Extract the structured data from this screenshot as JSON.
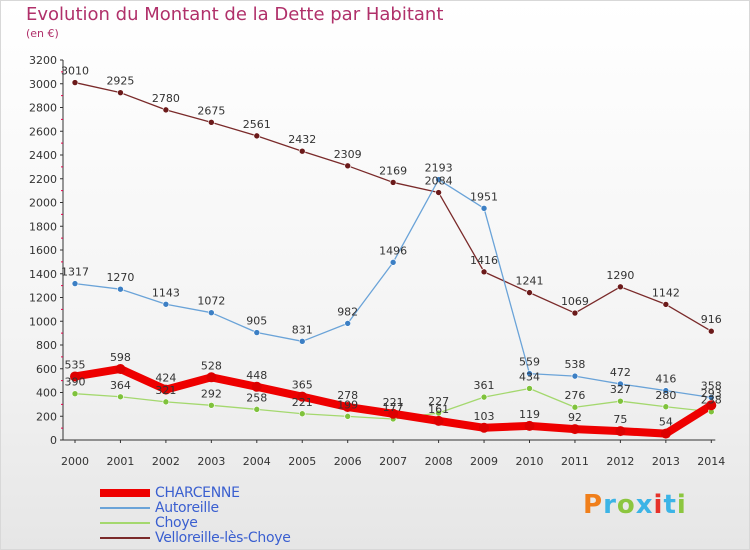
{
  "title": "Evolution du Montant de la Dette par Habitant",
  "subtitle": "(en €)",
  "logo": {
    "text": "Proxiti",
    "colors": [
      "#f07f1b",
      "#3cb4e6",
      "#8cc63f",
      "#3cb4e6",
      "#e6322a",
      "#3cb4e6",
      "#8cc63f"
    ]
  },
  "colors": {
    "title": "#b0306a",
    "axis": "#333333",
    "tick_label": "#333333",
    "legend_text": "#3a5fd0"
  },
  "chart_data": {
    "type": "line",
    "title": "Evolution du Montant de la Dette par Habitant",
    "subtitle": "(en €)",
    "x": [
      "2000",
      "2001",
      "2002",
      "2003",
      "2004",
      "2005",
      "2006",
      "2007",
      "2008",
      "2009",
      "2010",
      "2011",
      "2012",
      "2013",
      "2014"
    ],
    "ylim": [
      0,
      3200
    ],
    "yticks": [
      0,
      200,
      400,
      600,
      800,
      1000,
      1200,
      1400,
      1600,
      1800,
      2000,
      2200,
      2400,
      2600,
      2800,
      3000,
      3200
    ],
    "grid": false,
    "legend_position": "bottom-left",
    "series": [
      {
        "name": "CHARCENNE",
        "color": "#ee0000",
        "marker": "#dd0000",
        "width": 8,
        "values": [
          535,
          598,
          424,
          528,
          448,
          365,
          278,
          221,
          161,
          103,
          119,
          92,
          75,
          54,
          293
        ],
        "labels": [
          "535",
          "598",
          "424",
          "528",
          "448",
          "365",
          "278",
          "221",
          "161",
          "103",
          "119",
          "92",
          "75",
          "54",
          "293"
        ]
      },
      {
        "name": "Autoreille",
        "color": "#6aa3d8",
        "marker": "#3c7fc4",
        "width": 1.3,
        "values": [
          1317,
          1270,
          1143,
          1072,
          905,
          831,
          982,
          1496,
          2193,
          1951,
          559,
          538,
          472,
          416,
          358
        ],
        "labels": [
          "1317",
          "1270",
          "1143",
          "1072",
          "905",
          "831",
          "982",
          "1496",
          "2193",
          "1951",
          "559",
          "538",
          "472",
          "416",
          "358"
        ]
      },
      {
        "name": "Choye",
        "color": "#a4d86e",
        "marker": "#7fc23c",
        "width": 1.3,
        "values": [
          390,
          364,
          321,
          292,
          258,
          221,
          199,
          177,
          227,
          361,
          434,
          276,
          327,
          280,
          238
        ],
        "labels": [
          "390",
          "364",
          "321",
          "292",
          "258",
          "221",
          "199",
          "177",
          "227",
          "361",
          "434",
          "276",
          "327",
          "280",
          "238"
        ]
      },
      {
        "name": "Velloreille-lès-Choye",
        "color": "#7a2a2a",
        "marker": "#6b1a1a",
        "width": 1.3,
        "values": [
          3010,
          2925,
          2780,
          2675,
          2561,
          2432,
          2309,
          2169,
          2084,
          1416,
          1241,
          1069,
          1290,
          1142,
          916
        ],
        "labels": [
          "3010",
          "2925",
          "2780",
          "2675",
          "2561",
          "2432",
          "2309",
          "2169",
          "2084",
          "1416",
          "1241",
          "1069",
          "1290",
          "1142",
          "916"
        ]
      }
    ]
  }
}
